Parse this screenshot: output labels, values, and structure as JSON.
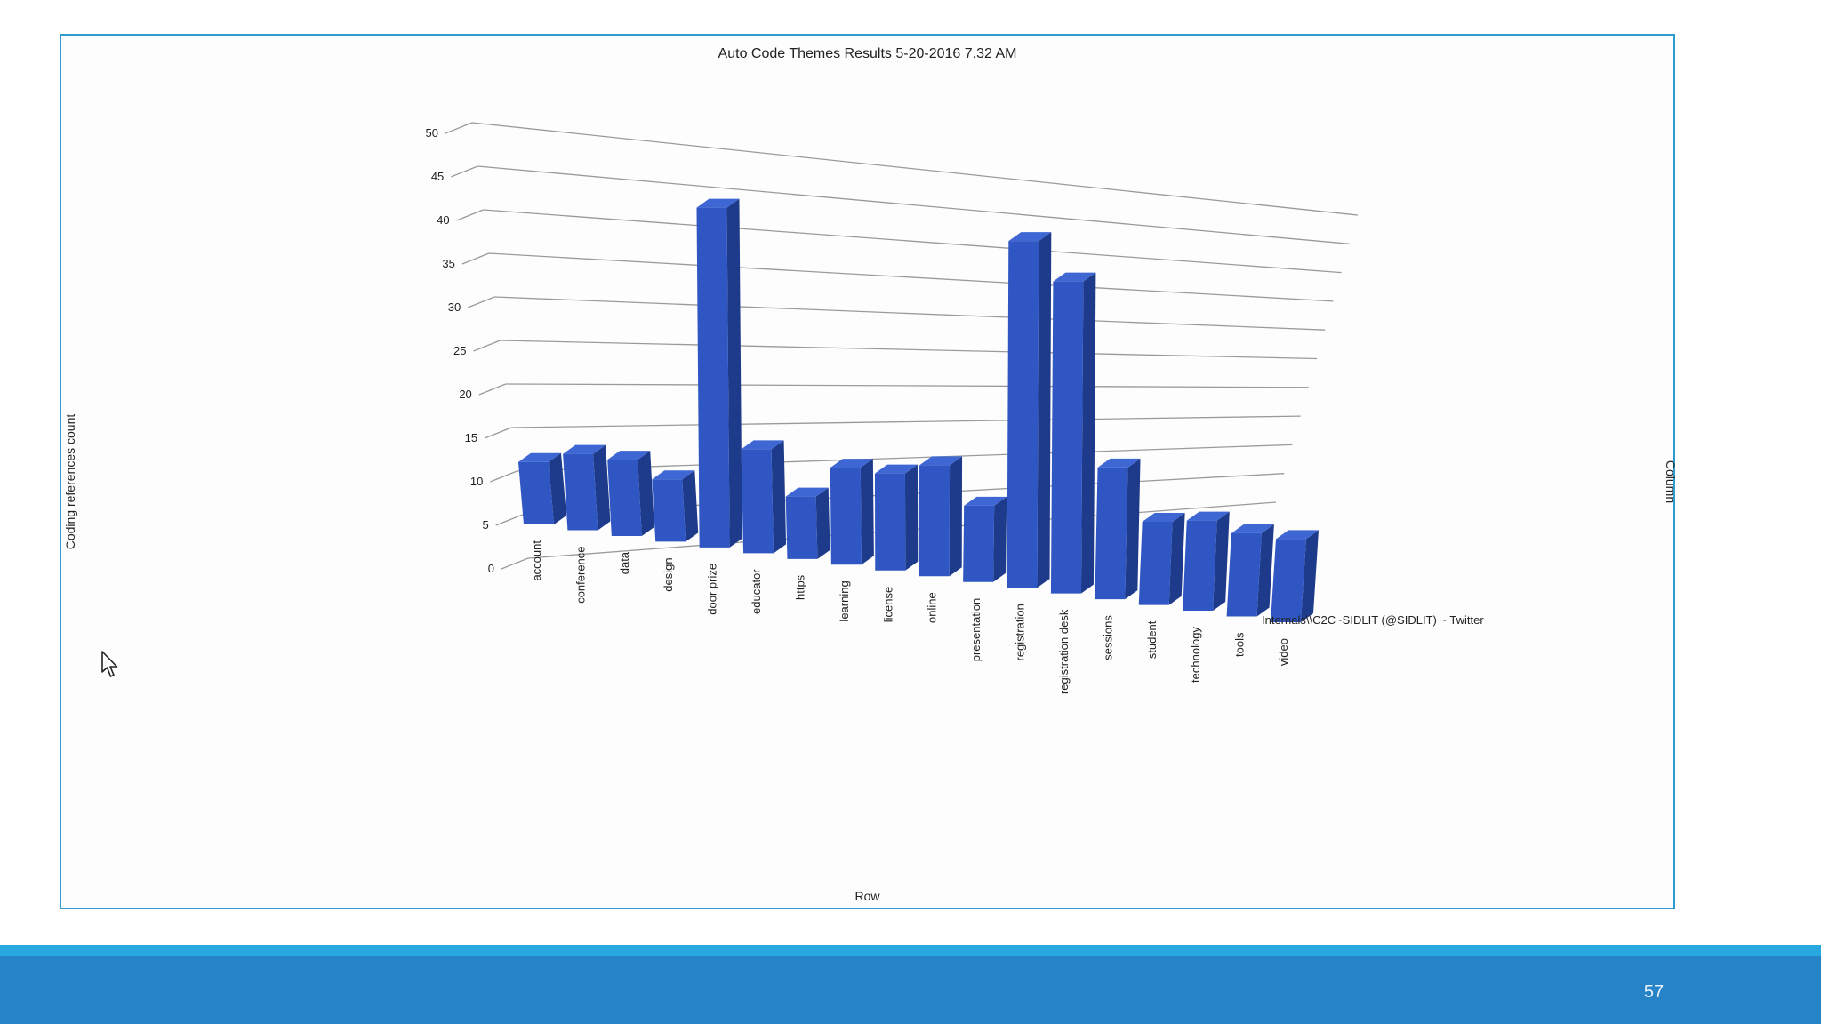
{
  "chart_data": {
    "type": "bar",
    "title": "Auto Code Themes Results 5-20-2016 7.32 AM",
    "xlabel": "Row",
    "ylabel": "Coding references count",
    "zlabel": "Column",
    "series_label": "Internals\\\\C2C~SIDLIT (@SIDLIT) ~ Twitter",
    "ylim": [
      0,
      50
    ],
    "yticks": [
      "0",
      "5",
      "10",
      "15",
      "20",
      "25",
      "30",
      "35",
      "40",
      "45",
      "50"
    ],
    "categories": [
      "account",
      "conference",
      "data",
      "design",
      "door prize",
      "educator",
      "https",
      "learning",
      "license",
      "online",
      "presentation",
      "registration",
      "registration desk",
      "sessions",
      "student",
      "technology",
      "tools",
      "video"
    ],
    "series": [
      {
        "name": "Internals\\\\C2C~SIDLIT (@SIDLIT) ~ Twitter",
        "values": [
          9,
          11,
          11,
          9,
          49,
          15,
          9,
          14,
          14,
          16,
          11,
          50,
          45,
          19,
          12,
          13,
          12,
          12
        ]
      }
    ],
    "grid": true,
    "legend": "none",
    "bar_color": "#2f56c2"
  },
  "footer": {
    "slide_number": "57"
  }
}
